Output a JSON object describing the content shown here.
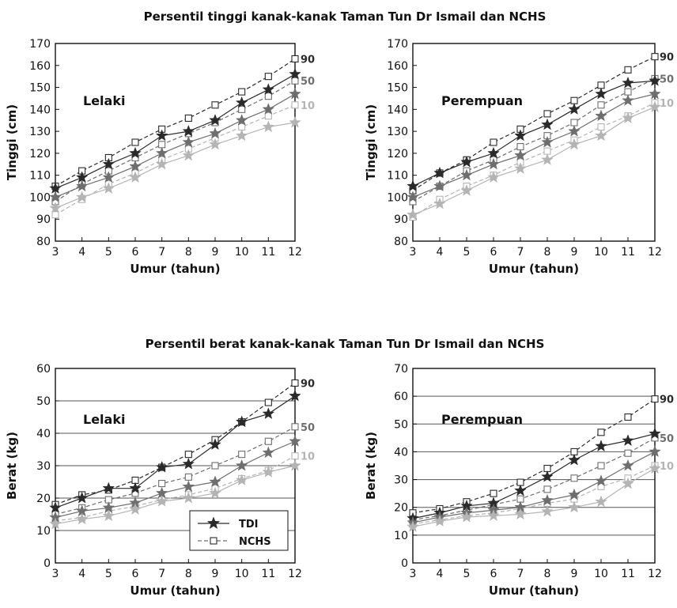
{
  "figure": {
    "title_height": "Persentil tinggi kanak-kanak Taman Tun Dr Ismail dan NCHS",
    "title_weight": "Persentil berat kanak-kanak Taman Tun Dr Ismail dan NCHS"
  },
  "legend": {
    "tdi_label": "TDI",
    "nchs_label": "NCHS"
  },
  "colors": {
    "p90": "#2a2a2a",
    "p50": "#6e6e6e",
    "p10": "#b4b4b4",
    "axis": "#111111",
    "grid": "#555555"
  },
  "chart_data": [
    {
      "type": "line",
      "title": "Persentil tinggi kanak-kanak Taman Tun Dr Ismail dan NCHS",
      "panel_label": "Lelaki",
      "xlabel": "Umur (tahun)",
      "ylabel": "Tinggi (cm)",
      "x": [
        3,
        4,
        5,
        6,
        7,
        8,
        9,
        10,
        11,
        12
      ],
      "xlim": [
        3,
        12
      ],
      "ylim": [
        80,
        170
      ],
      "yticks": [
        80,
        90,
        100,
        110,
        120,
        130,
        140,
        150,
        160,
        170
      ],
      "grid": false,
      "percentile_labels": [
        "90",
        "50",
        "10"
      ],
      "series": [
        {
          "name": "TDI",
          "percentile": "90",
          "values": [
            104,
            109,
            115,
            120,
            128,
            130,
            135,
            143,
            149,
            156
          ]
        },
        {
          "name": "TDI",
          "percentile": "50",
          "values": [
            100,
            105,
            109,
            114,
            120,
            125,
            129,
            135,
            140,
            147
          ]
        },
        {
          "name": "TDI",
          "percentile": "10",
          "values": [
            95,
            100,
            104,
            109,
            115,
            119,
            124,
            128,
            132,
            134
          ]
        },
        {
          "name": "NCHS",
          "percentile": "90",
          "values": [
            105,
            112,
            118,
            125,
            131,
            136,
            142,
            148,
            155,
            163
          ]
        },
        {
          "name": "NCHS",
          "percentile": "50",
          "values": [
            98,
            106,
            112,
            118,
            124,
            129,
            134,
            140,
            146,
            153
          ]
        },
        {
          "name": "NCHS",
          "percentile": "10",
          "values": [
            92,
            99,
            106,
            111,
            117,
            122,
            127,
            132,
            137,
            142
          ]
        }
      ]
    },
    {
      "type": "line",
      "panel_label": "Perempuan",
      "xlabel": "Umur (tahun)",
      "ylabel": "Tinggi (cm)",
      "x": [
        3,
        4,
        5,
        6,
        7,
        8,
        9,
        10,
        11,
        12
      ],
      "xlim": [
        3,
        12
      ],
      "ylim": [
        80,
        170
      ],
      "yticks": [
        80,
        90,
        100,
        110,
        120,
        130,
        140,
        150,
        160,
        170
      ],
      "grid": false,
      "percentile_labels": [
        "90",
        "50",
        "10"
      ],
      "series": [
        {
          "name": "TDI",
          "percentile": "90",
          "values": [
            105,
            111,
            116,
            120,
            128,
            133,
            140,
            147,
            152,
            153
          ]
        },
        {
          "name": "TDI",
          "percentile": "50",
          "values": [
            100,
            105,
            110,
            115,
            119,
            125,
            130,
            137,
            144,
            147
          ]
        },
        {
          "name": "TDI",
          "percentile": "10",
          "values": [
            92,
            97,
            103,
            109,
            113,
            117,
            124,
            128,
            136,
            141
          ]
        },
        {
          "name": "NCHS",
          "percentile": "90",
          "values": [
            103,
            111,
            117,
            125,
            131,
            138,
            144,
            151,
            158,
            164
          ]
        },
        {
          "name": "NCHS",
          "percentile": "50",
          "values": [
            98,
            105,
            112,
            117,
            123,
            128,
            134,
            142,
            148,
            154
          ]
        },
        {
          "name": "NCHS",
          "percentile": "10",
          "values": [
            91,
            99,
            105,
            110,
            116,
            121,
            126,
            132,
            137,
            143
          ]
        }
      ]
    },
    {
      "type": "line",
      "title": "Persentil berat kanak-kanak Taman Tun Dr Ismail dan NCHS",
      "panel_label": "Lelaki",
      "xlabel": "Umur (tahun)",
      "ylabel": "Berat (kg)",
      "x": [
        3,
        4,
        5,
        6,
        7,
        8,
        9,
        10,
        11,
        12
      ],
      "xlim": [
        3,
        12
      ],
      "ylim": [
        0,
        60
      ],
      "yticks": [
        0,
        10,
        20,
        30,
        40,
        50,
        60
      ],
      "grid": true,
      "legend_position": "bottom-right",
      "percentile_labels": [
        "90",
        "50",
        "10"
      ],
      "series": [
        {
          "name": "TDI",
          "percentile": "90",
          "values": [
            17,
            20,
            23,
            23,
            29.5,
            30.5,
            36.5,
            43.5,
            46,
            51.5
          ]
        },
        {
          "name": "TDI",
          "percentile": "50",
          "values": [
            14,
            16,
            17,
            18.5,
            21.5,
            23.5,
            25,
            30,
            34,
            37.5
          ]
        },
        {
          "name": "TDI",
          "percentile": "10",
          "values": [
            12,
            13.5,
            14.5,
            16.5,
            19,
            20,
            21.5,
            25.5,
            28,
            30
          ]
        },
        {
          "name": "NCHS",
          "percentile": "90",
          "values": [
            18,
            21,
            22.5,
            25.5,
            29.5,
            33.5,
            38,
            43.5,
            49.5,
            55.5
          ]
        },
        {
          "name": "NCHS",
          "percentile": "50",
          "values": [
            15,
            17,
            19.5,
            21.5,
            24.5,
            26.5,
            30,
            33.5,
            37.5,
            42
          ]
        },
        {
          "name": "NCHS",
          "percentile": "10",
          "values": [
            13,
            14,
            16,
            17.5,
            19.5,
            21,
            23,
            26,
            28.5,
            33
          ]
        }
      ]
    },
    {
      "type": "line",
      "panel_label": "Perempuan",
      "xlabel": "Umur (tahun)",
      "ylabel": "Berat (kg)",
      "x": [
        3,
        4,
        5,
        6,
        7,
        8,
        9,
        10,
        11,
        12
      ],
      "xlim": [
        3,
        12
      ],
      "ylim": [
        0,
        70
      ],
      "yticks": [
        0,
        10,
        20,
        30,
        40,
        50,
        60,
        70
      ],
      "grid": true,
      "percentile_labels": [
        "90",
        "50",
        "10"
      ],
      "series": [
        {
          "name": "TDI",
          "percentile": "90",
          "values": [
            16,
            18,
            20.5,
            21.5,
            26,
            31,
            37,
            42,
            44,
            46.5
          ]
        },
        {
          "name": "TDI",
          "percentile": "50",
          "values": [
            14.5,
            16.5,
            18,
            19,
            20,
            22.5,
            24.5,
            29.5,
            35,
            40
          ]
        },
        {
          "name": "TDI",
          "percentile": "10",
          "values": [
            13,
            15,
            16.5,
            17,
            17.5,
            18.5,
            20,
            22,
            28.5,
            34
          ]
        },
        {
          "name": "NCHS",
          "percentile": "90",
          "values": [
            18,
            19.5,
            22,
            25,
            29,
            34,
            40,
            47,
            52.5,
            59
          ]
        },
        {
          "name": "NCHS",
          "percentile": "50",
          "values": [
            15.5,
            17,
            19,
            21,
            23,
            26.5,
            30.5,
            35,
            39.5,
            45
          ]
        },
        {
          "name": "NCHS",
          "percentile": "10",
          "values": [
            14,
            15.5,
            17,
            18,
            19.5,
            21.5,
            23,
            27.5,
            30.5,
            35
          ]
        }
      ]
    }
  ]
}
